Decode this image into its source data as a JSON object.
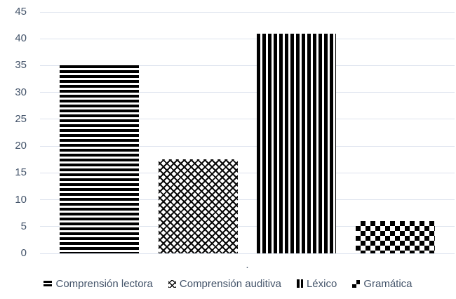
{
  "chart_data": {
    "type": "bar",
    "title": "",
    "xlabel": "",
    "ylabel": "",
    "categories": [
      "."
    ],
    "series": [
      {
        "name": "Comprensión lectora",
        "pattern": "horizontal-stripes",
        "values": [
          35
        ]
      },
      {
        "name": "Comprensión auditiva",
        "pattern": "diagonal-crosshatch",
        "values": [
          17.5
        ]
      },
      {
        "name": "Léxico",
        "pattern": "vertical-stripes",
        "values": [
          41
        ]
      },
      {
        "name": "Gramática",
        "pattern": "checkerboard",
        "values": [
          6
        ]
      }
    ],
    "ylim": [
      0,
      45
    ],
    "yticks": [
      0,
      5,
      10,
      15,
      20,
      25,
      30,
      35,
      40,
      45
    ],
    "grid": true,
    "legend_position": "bottom",
    "colors": {
      "pattern_foreground": "#000000",
      "pattern_background": "#ffffff",
      "axis_text": "#44546A",
      "gridline": "#dde3ee"
    }
  }
}
